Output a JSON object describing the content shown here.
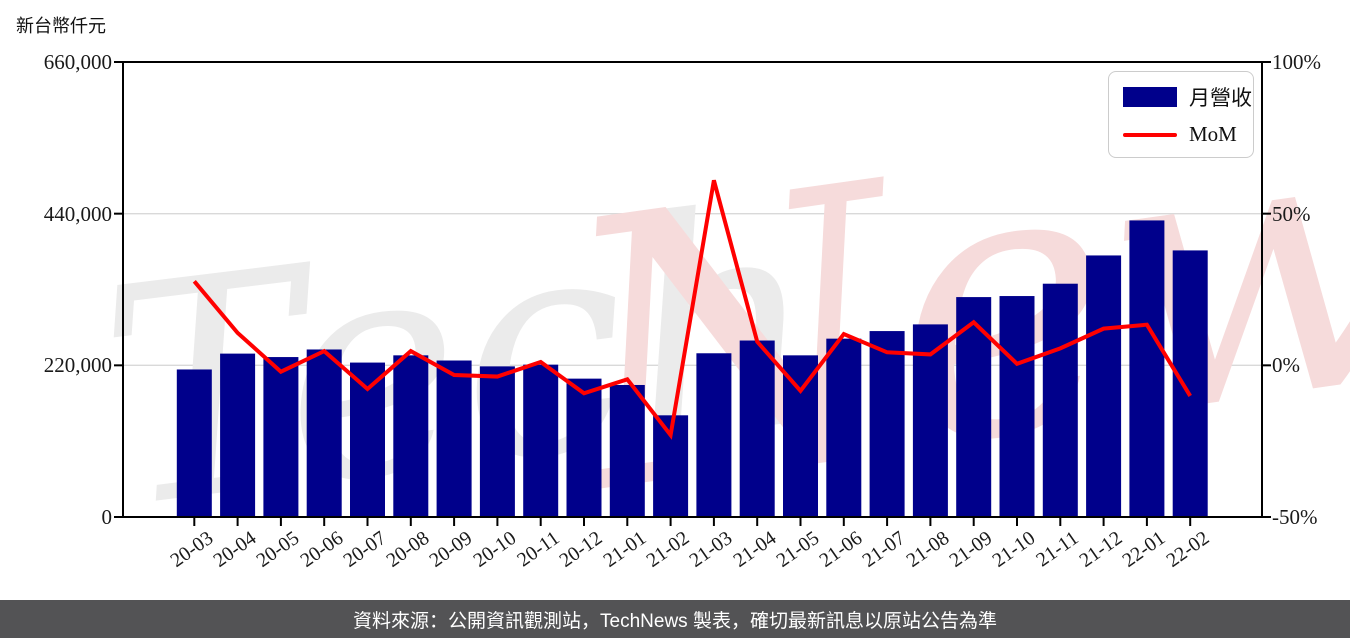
{
  "header": {
    "unit_label": "新台幣仟元"
  },
  "legend": {
    "revenue_label": "月營收",
    "mom_label": "MoM"
  },
  "watermark": {
    "part1": "Tech",
    "part2": "News"
  },
  "footer": {
    "text": "資料來源：公開資訊觀測站，TechNews 製表，確切最新訊息以原站公告為準"
  },
  "colors": {
    "bar": "#00008B",
    "line": "#FF0000",
    "grid": "#d9d9d9",
    "spine": "#000000",
    "watermark_gray": "#ebebeb",
    "watermark_pink": "#f6dbdb",
    "footer_bg": "#535355"
  },
  "chart_data": {
    "type": "bar",
    "title": "",
    "xlabel": "",
    "ylabel_left": "新台幣仟元",
    "categories": [
      "20-03",
      "20-04",
      "20-05",
      "20-06",
      "20-07",
      "20-08",
      "20-09",
      "20-10",
      "20-11",
      "20-12",
      "21-01",
      "21-02",
      "21-03",
      "21-04",
      "21-05",
      "21-06",
      "21-07",
      "21-08",
      "21-09",
      "21-10",
      "21-11",
      "21-12",
      "22-01",
      "22-02"
    ],
    "series": [
      {
        "name": "月營收",
        "type": "bar",
        "axis": "left",
        "color": "#00008B",
        "values": [
          214000,
          237000,
          232000,
          243000,
          224000,
          234500,
          227000,
          218500,
          221000,
          200700,
          191500,
          147500,
          237500,
          256000,
          234500,
          258700,
          269700,
          279400,
          319000,
          320500,
          338400,
          379400,
          430200,
          386700
        ]
      },
      {
        "name": "MoM",
        "type": "line",
        "axis": "right",
        "color": "#FF0000",
        "values": [
          27.7,
          10.7,
          -2.1,
          4.7,
          -7.8,
          4.7,
          -3.2,
          -3.7,
          1.1,
          -9.2,
          -4.6,
          -23.0,
          61.0,
          7.8,
          -8.4,
          10.3,
          4.3,
          3.6,
          14.2,
          0.5,
          5.6,
          12.1,
          13.4,
          -10.1
        ]
      }
    ],
    "y_left": {
      "range": [
        0,
        660000
      ],
      "ticks": [
        {
          "v": 0,
          "label": "0"
        },
        {
          "v": 220000,
          "label": "220,000"
        },
        {
          "v": 440000,
          "label": "440,000"
        },
        {
          "v": 660000,
          "label": "660,000"
        }
      ]
    },
    "y_right": {
      "range": [
        -50,
        100
      ],
      "ticks": [
        {
          "v": -50,
          "label": "-50%"
        },
        {
          "v": 0,
          "label": "0%"
        },
        {
          "v": 50,
          "label": "50%"
        },
        {
          "v": 100,
          "label": "100%"
        }
      ]
    },
    "grid": true,
    "legend_position": "top-right"
  }
}
